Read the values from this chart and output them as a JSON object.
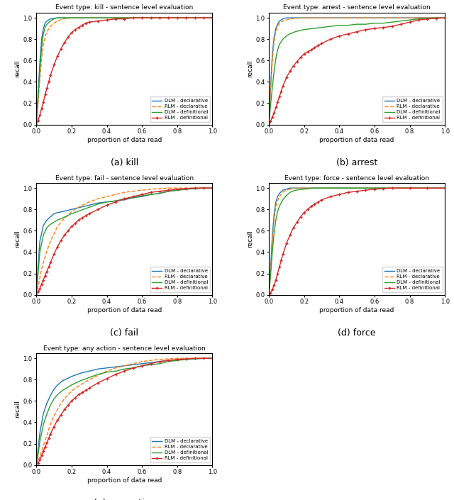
{
  "titles": [
    "Event type: kill - sentence level evaluation",
    "Event type: arrest - sentence level evaluation",
    "Event type: fail - sentence level evaluation",
    "Event type: force - sentence level evaluation",
    "Event type: any action - sentence level evaluation"
  ],
  "captions": [
    "(a) kill",
    "(b) arrest",
    "(c) fail",
    "(d) force",
    "(e) any action"
  ],
  "legend_labels": [
    "DLM - declarative",
    "RLM - declarative",
    "DLM - definitional",
    "RLM - definitional"
  ],
  "line_styles": [
    {
      "color": "#1f77b4",
      "linestyle": "-",
      "marker": null,
      "linewidth": 1.0
    },
    {
      "color": "#ff7f0e",
      "linestyle": "--",
      "marker": null,
      "linewidth": 1.0
    },
    {
      "color": "#2ca02c",
      "linestyle": "-",
      "marker": null,
      "linewidth": 1.0
    },
    {
      "color": "#d62728",
      "linestyle": "-",
      "marker": "+",
      "linewidth": 1.0,
      "markersize": 3
    }
  ],
  "xlabel": "proportion of data read",
  "ylabel": "recall",
  "xlim": [
    0.0,
    1.0
  ],
  "ylim": [
    0.0,
    1.05
  ],
  "figsize": [
    6.4,
    7.05
  ],
  "dpi": 100,
  "kill": {
    "DLM_dec": {
      "x": [
        0.0,
        0.01,
        0.02,
        0.03,
        0.04,
        0.05,
        0.06,
        0.08,
        0.1,
        0.12,
        0.15,
        0.2,
        0.3,
        1.0
      ],
      "y": [
        0.0,
        0.3,
        0.58,
        0.8,
        0.9,
        0.95,
        0.97,
        0.99,
        0.995,
        1.0,
        1.0,
        1.0,
        1.0,
        1.0
      ]
    },
    "RLM_dec": {
      "x": [
        0.0,
        0.01,
        0.02,
        0.03,
        0.04,
        0.05,
        0.06,
        0.08,
        0.1,
        0.12,
        0.15,
        0.2,
        0.25,
        0.3,
        1.0
      ],
      "y": [
        0.0,
        0.2,
        0.42,
        0.62,
        0.75,
        0.82,
        0.87,
        0.92,
        0.95,
        0.97,
        0.99,
        1.0,
        1.0,
        1.0,
        1.0
      ]
    },
    "DLM_def": {
      "x": [
        0.0,
        0.01,
        0.02,
        0.03,
        0.04,
        0.05,
        0.06,
        0.08,
        0.1,
        0.12,
        0.15,
        0.2,
        0.25,
        1.0
      ],
      "y": [
        0.0,
        0.25,
        0.5,
        0.72,
        0.85,
        0.91,
        0.94,
        0.97,
        0.99,
        1.0,
        1.0,
        1.0,
        1.0,
        1.0
      ]
    },
    "RLM_def": {
      "x": [
        0.0,
        0.01,
        0.02,
        0.03,
        0.04,
        0.05,
        0.06,
        0.07,
        0.08,
        0.1,
        0.12,
        0.14,
        0.16,
        0.18,
        0.2,
        0.22,
        0.24,
        0.26,
        0.28,
        0.3,
        0.35,
        0.4,
        0.45,
        0.5,
        0.55,
        0.6,
        0.65,
        0.7,
        0.75,
        0.8,
        0.85,
        0.9,
        0.95,
        1.0
      ],
      "y": [
        0.0,
        0.04,
        0.09,
        0.15,
        0.21,
        0.28,
        0.34,
        0.4,
        0.46,
        0.56,
        0.64,
        0.71,
        0.77,
        0.82,
        0.86,
        0.89,
        0.91,
        0.93,
        0.95,
        0.96,
        0.97,
        0.98,
        0.99,
        0.99,
        1.0,
        1.0,
        1.0,
        1.0,
        1.0,
        1.0,
        1.0,
        1.0,
        1.0,
        1.0
      ]
    }
  },
  "arrest": {
    "DLM_dec": {
      "x": [
        0.0,
        0.01,
        0.02,
        0.03,
        0.04,
        0.05,
        0.06,
        0.08,
        0.1,
        0.12,
        0.15,
        0.2,
        0.3,
        1.0
      ],
      "y": [
        0.0,
        0.35,
        0.65,
        0.82,
        0.9,
        0.94,
        0.97,
        0.99,
        1.0,
        1.0,
        1.0,
        1.0,
        1.0,
        1.0
      ]
    },
    "RLM_dec": {
      "x": [
        0.0,
        0.01,
        0.02,
        0.03,
        0.04,
        0.05,
        0.06,
        0.08,
        0.1,
        0.12,
        0.15,
        0.2,
        0.25,
        0.3,
        0.4,
        0.5,
        0.6,
        0.7,
        1.0
      ],
      "y": [
        0.0,
        0.32,
        0.6,
        0.78,
        0.87,
        0.92,
        0.95,
        0.97,
        0.98,
        0.99,
        0.995,
        1.0,
        1.0,
        1.0,
        1.0,
        1.0,
        1.0,
        1.0,
        1.0
      ]
    },
    "DLM_def": {
      "x": [
        0.0,
        0.01,
        0.02,
        0.03,
        0.04,
        0.05,
        0.06,
        0.08,
        0.1,
        0.12,
        0.15,
        0.2,
        0.25,
        0.3,
        0.35,
        0.4,
        0.45,
        0.5,
        0.55,
        0.6,
        0.65,
        0.7,
        0.75,
        0.8,
        0.85,
        0.9,
        0.95,
        1.0
      ],
      "y": [
        0.0,
        0.18,
        0.35,
        0.5,
        0.62,
        0.7,
        0.75,
        0.8,
        0.83,
        0.85,
        0.87,
        0.89,
        0.9,
        0.91,
        0.92,
        0.93,
        0.93,
        0.94,
        0.94,
        0.95,
        0.95,
        0.96,
        0.97,
        0.98,
        0.99,
        0.995,
        1.0,
        1.0
      ]
    },
    "RLM_def": {
      "x": [
        0.0,
        0.01,
        0.02,
        0.03,
        0.04,
        0.05,
        0.06,
        0.07,
        0.08,
        0.1,
        0.12,
        0.14,
        0.16,
        0.18,
        0.2,
        0.22,
        0.24,
        0.26,
        0.28,
        0.3,
        0.35,
        0.4,
        0.45,
        0.5,
        0.55,
        0.6,
        0.65,
        0.7,
        0.75,
        0.8,
        0.85,
        0.9,
        0.95,
        1.0
      ],
      "y": [
        0.0,
        0.03,
        0.07,
        0.11,
        0.16,
        0.21,
        0.26,
        0.31,
        0.36,
        0.44,
        0.5,
        0.55,
        0.59,
        0.63,
        0.66,
        0.68,
        0.7,
        0.72,
        0.74,
        0.76,
        0.8,
        0.83,
        0.85,
        0.87,
        0.89,
        0.9,
        0.91,
        0.92,
        0.94,
        0.96,
        0.98,
        0.99,
        0.995,
        1.0
      ]
    }
  },
  "fail": {
    "DLM_dec": {
      "x": [
        0.0,
        0.01,
        0.02,
        0.04,
        0.06,
        0.08,
        0.1,
        0.12,
        0.15,
        0.2,
        0.25,
        0.3,
        0.35,
        0.4,
        0.45,
        0.5,
        0.55,
        0.6,
        0.65,
        0.7,
        0.75,
        0.8,
        0.85,
        0.9,
        0.95,
        1.0
      ],
      "y": [
        0.0,
        0.28,
        0.5,
        0.65,
        0.7,
        0.73,
        0.76,
        0.77,
        0.78,
        0.8,
        0.82,
        0.84,
        0.86,
        0.87,
        0.88,
        0.89,
        0.91,
        0.92,
        0.94,
        0.95,
        0.97,
        0.98,
        0.99,
        0.995,
        1.0,
        1.0
      ]
    },
    "RLM_dec": {
      "x": [
        0.0,
        0.01,
        0.02,
        0.03,
        0.04,
        0.05,
        0.06,
        0.08,
        0.1,
        0.12,
        0.15,
        0.2,
        0.25,
        0.3,
        0.35,
        0.4,
        0.45,
        0.5,
        0.55,
        0.6,
        0.65,
        0.7,
        0.75,
        0.8,
        0.85,
        0.9,
        0.95,
        1.0
      ],
      "y": [
        0.0,
        0.08,
        0.16,
        0.24,
        0.3,
        0.36,
        0.41,
        0.5,
        0.57,
        0.64,
        0.7,
        0.78,
        0.83,
        0.87,
        0.9,
        0.92,
        0.94,
        0.96,
        0.97,
        0.98,
        0.99,
        0.995,
        1.0,
        1.0,
        1.0,
        1.0,
        1.0,
        1.0
      ]
    },
    "DLM_def": {
      "x": [
        0.0,
        0.01,
        0.02,
        0.04,
        0.06,
        0.08,
        0.1,
        0.12,
        0.15,
        0.2,
        0.25,
        0.3,
        0.35,
        0.4,
        0.45,
        0.5,
        0.55,
        0.6,
        0.65,
        0.7,
        0.75,
        0.8,
        0.85,
        0.9,
        0.95,
        1.0
      ],
      "y": [
        0.0,
        0.2,
        0.4,
        0.56,
        0.63,
        0.66,
        0.68,
        0.7,
        0.72,
        0.76,
        0.79,
        0.82,
        0.85,
        0.87,
        0.88,
        0.9,
        0.91,
        0.93,
        0.94,
        0.95,
        0.97,
        0.98,
        0.99,
        0.995,
        1.0,
        1.0
      ]
    },
    "RLM_def": {
      "x": [
        0.0,
        0.01,
        0.02,
        0.03,
        0.04,
        0.05,
        0.06,
        0.07,
        0.08,
        0.1,
        0.12,
        0.14,
        0.16,
        0.18,
        0.2,
        0.22,
        0.24,
        0.26,
        0.28,
        0.3,
        0.35,
        0.4,
        0.45,
        0.5,
        0.55,
        0.6,
        0.65,
        0.7,
        0.75,
        0.8,
        0.85,
        0.9,
        0.95,
        1.0
      ],
      "y": [
        0.0,
        0.03,
        0.06,
        0.1,
        0.14,
        0.18,
        0.22,
        0.26,
        0.3,
        0.38,
        0.45,
        0.51,
        0.56,
        0.6,
        0.64,
        0.67,
        0.7,
        0.72,
        0.74,
        0.76,
        0.8,
        0.84,
        0.87,
        0.9,
        0.92,
        0.94,
        0.96,
        0.97,
        0.98,
        0.99,
        0.995,
        1.0,
        1.0,
        1.0
      ]
    }
  },
  "force": {
    "DLM_dec": {
      "x": [
        0.0,
        0.01,
        0.02,
        0.03,
        0.04,
        0.05,
        0.06,
        0.08,
        0.1,
        0.12,
        0.15,
        0.2,
        0.25,
        0.3,
        1.0
      ],
      "y": [
        0.0,
        0.25,
        0.55,
        0.75,
        0.87,
        0.92,
        0.95,
        0.98,
        0.99,
        1.0,
        1.0,
        1.0,
        1.0,
        1.0,
        1.0
      ]
    },
    "RLM_dec": {
      "x": [
        0.0,
        0.01,
        0.02,
        0.03,
        0.04,
        0.05,
        0.06,
        0.08,
        0.1,
        0.12,
        0.15,
        0.2,
        0.25,
        0.3,
        1.0
      ],
      "y": [
        0.0,
        0.22,
        0.5,
        0.7,
        0.82,
        0.88,
        0.92,
        0.96,
        0.98,
        0.99,
        1.0,
        1.0,
        1.0,
        1.0,
        1.0
      ]
    },
    "DLM_def": {
      "x": [
        0.0,
        0.01,
        0.02,
        0.03,
        0.04,
        0.05,
        0.06,
        0.08,
        0.1,
        0.12,
        0.15,
        0.2,
        0.25,
        0.3,
        0.35,
        0.4,
        0.5,
        0.6,
        0.7,
        0.8,
        0.9,
        1.0
      ],
      "y": [
        0.0,
        0.18,
        0.4,
        0.58,
        0.7,
        0.78,
        0.83,
        0.89,
        0.93,
        0.96,
        0.98,
        0.99,
        1.0,
        1.0,
        1.0,
        1.0,
        1.0,
        1.0,
        1.0,
        1.0,
        1.0,
        1.0
      ]
    },
    "RLM_def": {
      "x": [
        0.0,
        0.01,
        0.02,
        0.03,
        0.04,
        0.05,
        0.06,
        0.07,
        0.08,
        0.1,
        0.12,
        0.14,
        0.16,
        0.18,
        0.2,
        0.22,
        0.24,
        0.26,
        0.28,
        0.3,
        0.35,
        0.4,
        0.45,
        0.5,
        0.55,
        0.6,
        0.65,
        0.7,
        0.8,
        0.9,
        1.0
      ],
      "y": [
        0.0,
        0.02,
        0.05,
        0.09,
        0.14,
        0.2,
        0.26,
        0.32,
        0.38,
        0.48,
        0.56,
        0.63,
        0.68,
        0.73,
        0.77,
        0.8,
        0.83,
        0.85,
        0.87,
        0.89,
        0.92,
        0.94,
        0.96,
        0.97,
        0.98,
        0.99,
        0.995,
        1.0,
        1.0,
        1.0,
        1.0
      ]
    }
  },
  "any_action": {
    "DLM_dec": {
      "x": [
        0.0,
        0.01,
        0.02,
        0.04,
        0.06,
        0.08,
        0.1,
        0.12,
        0.15,
        0.2,
        0.25,
        0.3,
        0.35,
        0.4,
        0.45,
        0.5,
        0.55,
        0.6,
        0.65,
        0.7,
        0.75,
        0.8,
        0.85,
        0.9,
        0.95,
        1.0
      ],
      "y": [
        0.0,
        0.15,
        0.3,
        0.48,
        0.58,
        0.65,
        0.71,
        0.75,
        0.79,
        0.83,
        0.86,
        0.88,
        0.9,
        0.91,
        0.92,
        0.93,
        0.94,
        0.95,
        0.96,
        0.97,
        0.98,
        0.985,
        0.99,
        0.995,
        1.0,
        1.0
      ]
    },
    "RLM_dec": {
      "x": [
        0.0,
        0.01,
        0.02,
        0.03,
        0.04,
        0.05,
        0.06,
        0.07,
        0.08,
        0.1,
        0.12,
        0.14,
        0.16,
        0.18,
        0.2,
        0.22,
        0.24,
        0.26,
        0.28,
        0.3,
        0.35,
        0.4,
        0.45,
        0.5,
        0.55,
        0.6,
        0.65,
        0.7,
        0.75,
        0.8,
        0.85,
        0.9,
        0.95,
        1.0
      ],
      "y": [
        0.0,
        0.04,
        0.08,
        0.13,
        0.18,
        0.23,
        0.28,
        0.33,
        0.38,
        0.46,
        0.52,
        0.58,
        0.62,
        0.66,
        0.69,
        0.72,
        0.74,
        0.76,
        0.78,
        0.8,
        0.84,
        0.88,
        0.91,
        0.93,
        0.95,
        0.97,
        0.98,
        0.99,
        0.995,
        1.0,
        1.0,
        1.0,
        1.0,
        1.0
      ]
    },
    "DLM_def": {
      "x": [
        0.0,
        0.01,
        0.02,
        0.04,
        0.06,
        0.08,
        0.1,
        0.12,
        0.15,
        0.2,
        0.25,
        0.3,
        0.35,
        0.4,
        0.45,
        0.5,
        0.55,
        0.6,
        0.65,
        0.7,
        0.75,
        0.8,
        0.85,
        0.9,
        0.95,
        1.0
      ],
      "y": [
        0.0,
        0.1,
        0.22,
        0.38,
        0.48,
        0.56,
        0.62,
        0.66,
        0.7,
        0.75,
        0.79,
        0.82,
        0.85,
        0.87,
        0.88,
        0.9,
        0.91,
        0.93,
        0.94,
        0.95,
        0.97,
        0.98,
        0.99,
        0.995,
        1.0,
        1.0
      ]
    },
    "RLM_def": {
      "x": [
        0.0,
        0.01,
        0.02,
        0.03,
        0.04,
        0.05,
        0.06,
        0.07,
        0.08,
        0.1,
        0.12,
        0.14,
        0.16,
        0.18,
        0.2,
        0.22,
        0.24,
        0.26,
        0.28,
        0.3,
        0.35,
        0.4,
        0.45,
        0.5,
        0.55,
        0.6,
        0.65,
        0.7,
        0.75,
        0.8,
        0.85,
        0.9,
        0.95,
        1.0
      ],
      "y": [
        0.0,
        0.02,
        0.05,
        0.09,
        0.13,
        0.17,
        0.21,
        0.25,
        0.29,
        0.36,
        0.42,
        0.47,
        0.52,
        0.56,
        0.6,
        0.63,
        0.66,
        0.68,
        0.7,
        0.72,
        0.77,
        0.81,
        0.85,
        0.88,
        0.91,
        0.93,
        0.95,
        0.97,
        0.98,
        0.99,
        0.995,
        1.0,
        1.0,
        1.0
      ]
    }
  }
}
